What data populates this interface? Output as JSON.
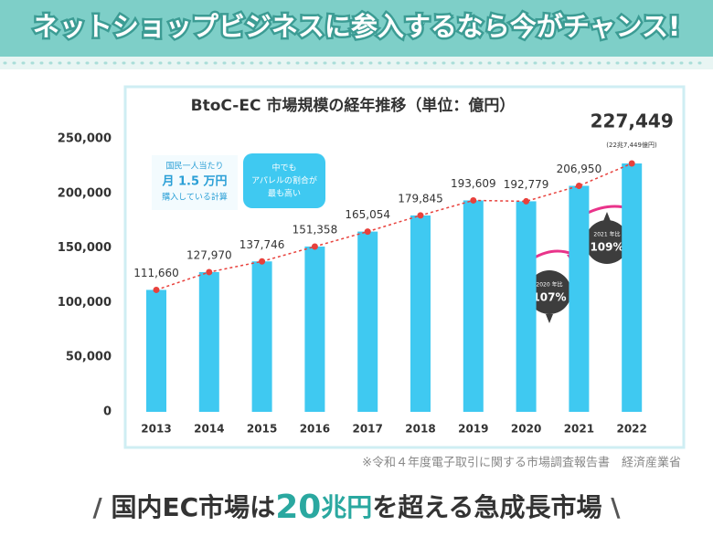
{
  "banner": {
    "title": "ネットショップビジネスに参入するなら今がチャンス!"
  },
  "chart_data": {
    "type": "bar",
    "title": "BtoC-EC 市場規模の経年推移（単位：億円）",
    "categories": [
      "2013",
      "2014",
      "2015",
      "2016",
      "2017",
      "2018",
      "2019",
      "2020",
      "2021",
      "2022"
    ],
    "values": [
      111660,
      127970,
      137746,
      151358,
      165054,
      179845,
      193609,
      192779,
      206950,
      227449
    ],
    "value_labels": [
      "111,660",
      "127,970",
      "137,746",
      "151,358",
      "165,054",
      "179,845",
      "193,609",
      "192,779",
      "206,950",
      "227,449"
    ],
    "color": "#3fc9f1",
    "line_color": "#e8413c",
    "ylim": [
      0,
      250000
    ],
    "yticks": [
      0,
      {
        "value": 50000,
        "label": "50,000"
      },
      {
        "value": 100000,
        "label": "100,000"
      },
      {
        "value": 150000,
        "label": "150,000"
      },
      {
        "value": 200000,
        "label": "200,000"
      },
      {
        "value": 250000,
        "label": "250,000"
      }
    ],
    "total_note": "(22兆7,449億円)",
    "annotations": [
      {
        "lines": [
          "国民一人当たり",
          "月 1.5 万円",
          "購入している計算"
        ]
      },
      {
        "lines": [
          "中でも",
          "アパレルの割合が",
          "最も高い"
        ]
      }
    ],
    "growth": [
      {
        "base": "2020 年比",
        "rate": "107%"
      },
      {
        "base": "2021 年比",
        "rate": "109%"
      }
    ]
  },
  "source": "※令和４年度電子取引に関する市場調査報告書　経済産業省",
  "headline": {
    "before": "国内EC市場は",
    "number": "20",
    "unit": "兆円",
    "after": "を超える急成長市場"
  }
}
